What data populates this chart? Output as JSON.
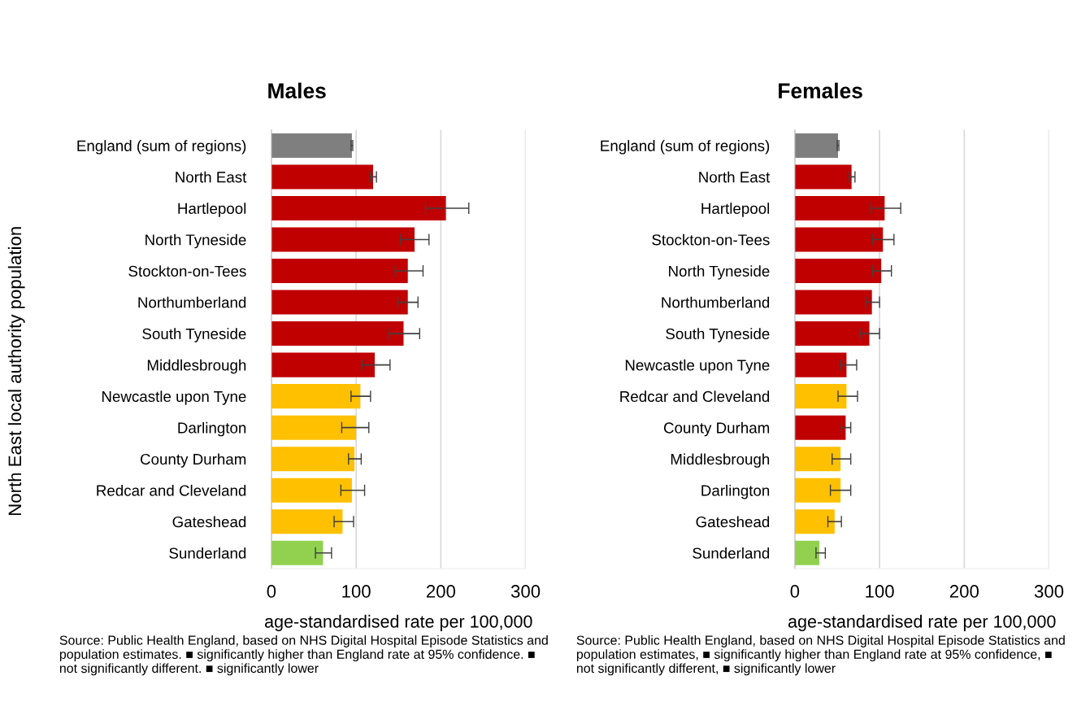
{
  "chart_data": [
    {
      "type": "bar",
      "orientation": "horizontal",
      "title": "Males",
      "ylabel": "North East local authority population",
      "xlabel": "age-standardised rate per 100,000",
      "categories": [
        "England (sum of regions)",
        "North East",
        "Hartlepool",
        "North Tyneside",
        "Stockton-on-Tees",
        "Northumberland",
        "South Tyneside",
        "Middlesbrough",
        "Newcastle upon Tyne",
        "Darlington",
        "County Durham",
        "Redcar and Cleveland",
        "Gateshead",
        "Sunderland"
      ],
      "values": [
        95,
        120,
        206,
        169,
        161,
        161,
        156,
        122,
        105,
        100,
        98,
        95,
        84,
        61
      ],
      "colors": [
        "#7f7f7f",
        "#c00000",
        "#c00000",
        "#c00000",
        "#c00000",
        "#c00000",
        "#c00000",
        "#c00000",
        "#ffc000",
        "#ffc000",
        "#ffc000",
        "#ffc000",
        "#ffc000",
        "#92d050"
      ],
      "errors": [
        [
          94,
          96
        ],
        [
          117,
          124
        ],
        [
          182,
          233
        ],
        [
          152,
          186
        ],
        [
          146,
          179
        ],
        [
          149,
          173
        ],
        [
          139,
          175
        ],
        [
          107,
          140
        ],
        [
          94,
          117
        ],
        [
          83,
          115
        ],
        [
          91,
          106
        ],
        [
          82,
          110
        ],
        [
          74,
          97
        ],
        [
          52,
          71
        ]
      ],
      "xlim": [
        0,
        300
      ],
      "xticks": [
        0,
        100,
        200,
        300
      ],
      "grid": "x",
      "annotations": [
        "Source: Public Health England, based on NHS Digital Hospital Episode Statistics and population estimates. ■ significantly higher than England rate at 95% confidence. ■ not significantly different. ■ significantly lower"
      ]
    },
    {
      "type": "bar",
      "orientation": "horizontal",
      "title": "Females",
      "xlabel": "age-standardised rate per 100,000",
      "categories": [
        "England (sum of regions)",
        "North East",
        "Hartlepool",
        "Stockton-on-Tees",
        "North Tyneside",
        "Northumberland",
        "South Tyneside",
        "Newcastle upon Tyne",
        "Redcar and Cleveland",
        "County Durham",
        "Middlesbrough",
        "Darlington",
        "Gateshead",
        "Sunderland"
      ],
      "values": [
        51,
        67,
        106,
        104,
        102,
        91,
        88,
        61,
        61,
        60,
        54,
        54,
        47,
        29
      ],
      "colors": [
        "#7f7f7f",
        "#c00000",
        "#c00000",
        "#c00000",
        "#c00000",
        "#c00000",
        "#c00000",
        "#c00000",
        "#ffc000",
        "#c00000",
        "#ffc000",
        "#ffc000",
        "#ffc000",
        "#92d050"
      ],
      "errors": [
        [
          50,
          52
        ],
        [
          64,
          71
        ],
        [
          90,
          125
        ],
        [
          92,
          117
        ],
        [
          92,
          114
        ],
        [
          84,
          100
        ],
        [
          77,
          100
        ],
        [
          54,
          73
        ],
        [
          51,
          74
        ],
        [
          55,
          66
        ],
        [
          44,
          66
        ],
        [
          42,
          66
        ],
        [
          39,
          55
        ],
        [
          25,
          36
        ]
      ],
      "xlim": [
        0,
        300
      ],
      "xticks": [
        0,
        100,
        200,
        300
      ],
      "grid": "x",
      "annotations": [
        "Source: Public Health England, based on NHS Digital Hospital Episode Statistics and population estimates, ■ significantly higher than England rate at 95% confidence, ■ not significantly different, ■ significantly lower"
      ]
    }
  ]
}
